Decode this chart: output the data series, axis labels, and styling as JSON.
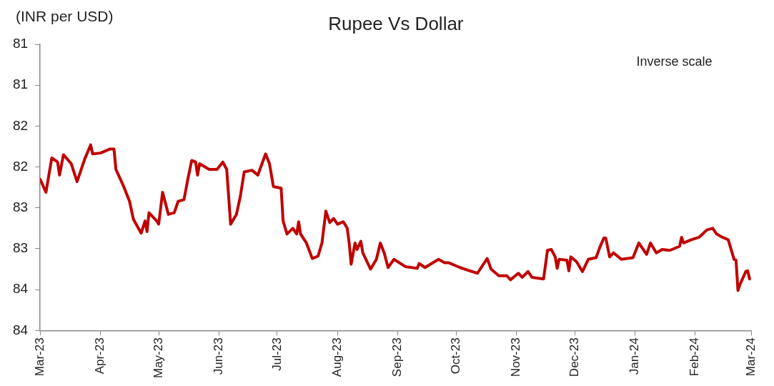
{
  "chart_data": {
    "type": "line",
    "title": "Rupee Vs Dollar",
    "ylabel": "(INR per USD)",
    "annotations": [
      "Inverse scale"
    ],
    "x": [
      "2023-03-01",
      "2023-03-04",
      "2023-03-07",
      "2023-03-10",
      "2023-03-11",
      "2023-03-13",
      "2023-03-17",
      "2023-03-20",
      "2023-03-24",
      "2023-03-27",
      "2023-03-28",
      "2023-04-01",
      "2023-04-06",
      "2023-04-08",
      "2023-04-09",
      "2023-04-13",
      "2023-04-16",
      "2023-04-18",
      "2023-04-22",
      "2023-04-24",
      "2023-04-25",
      "2023-04-26",
      "2023-04-30",
      "2023-05-01",
      "2023-05-03",
      "2023-05-06",
      "2023-05-09",
      "2023-05-11",
      "2023-05-14",
      "2023-05-16",
      "2023-05-18",
      "2023-05-20",
      "2023-05-21",
      "2023-05-22",
      "2023-05-27",
      "2023-05-31",
      "2023-06-03",
      "2023-06-05",
      "2023-06-07",
      "2023-06-10",
      "2023-06-12",
      "2023-06-14",
      "2023-06-18",
      "2023-06-21",
      "2023-06-25",
      "2023-06-27",
      "2023-06-29",
      "2023-07-03",
      "2023-07-04",
      "2023-07-06",
      "2023-07-09",
      "2023-07-11",
      "2023-07-12",
      "2023-07-13",
      "2023-07-16",
      "2023-07-19",
      "2023-07-22",
      "2023-07-24",
      "2023-07-26",
      "2023-07-28",
      "2023-07-30",
      "2023-08-01",
      "2023-08-04",
      "2023-08-06",
      "2023-08-07",
      "2023-08-08",
      "2023-08-10",
      "2023-08-11",
      "2023-08-13",
      "2023-08-14",
      "2023-08-18",
      "2023-08-21",
      "2023-08-23",
      "2023-08-25",
      "2023-08-27",
      "2023-08-30",
      "2023-09-05",
      "2023-09-11",
      "2023-09-12",
      "2023-09-15",
      "2023-09-22",
      "2023-09-25",
      "2023-09-27",
      "2023-10-03",
      "2023-10-08",
      "2023-10-12",
      "2023-10-17",
      "2023-10-19",
      "2023-10-23",
      "2023-10-27",
      "2023-10-29",
      "2023-11-02",
      "2023-11-04",
      "2023-11-07",
      "2023-11-09",
      "2023-11-15",
      "2023-11-17",
      "2023-11-19",
      "2023-11-21",
      "2023-11-22",
      "2023-11-23",
      "2023-11-27",
      "2023-11-28",
      "2023-11-29",
      "2023-12-02",
      "2023-12-05",
      "2023-12-08",
      "2023-12-12",
      "2023-12-14",
      "2023-12-16",
      "2023-12-17",
      "2023-12-19",
      "2023-12-21",
      "2023-12-25",
      "2023-12-31",
      "2024-01-03",
      "2024-01-07",
      "2024-01-09",
      "2024-01-12",
      "2024-01-15",
      "2024-01-19",
      "2024-01-24",
      "2024-01-25",
      "2024-01-26",
      "2024-01-30",
      "2024-02-03",
      "2024-02-07",
      "2024-02-10",
      "2024-02-12",
      "2024-02-15",
      "2024-02-18",
      "2024-02-21",
      "2024-02-22",
      "2024-02-23",
      "2024-02-24",
      "2024-02-27",
      "2024-02-28",
      "2024-02-29"
    ],
    "series": [
      {
        "color": "#c00000",
        "values": [
          82.15,
          82.31,
          81.89,
          81.94,
          82.1,
          81.85,
          81.96,
          82.18,
          81.9,
          81.73,
          81.84,
          81.83,
          81.78,
          81.78,
          82.03,
          82.24,
          82.42,
          82.64,
          82.81,
          82.66,
          82.79,
          82.56,
          82.66,
          82.7,
          82.31,
          82.58,
          82.56,
          82.42,
          82.4,
          82.15,
          81.92,
          81.94,
          82.1,
          81.96,
          82.03,
          82.03,
          81.94,
          82.03,
          82.7,
          82.58,
          82.36,
          82.06,
          82.04,
          82.1,
          81.84,
          81.96,
          82.24,
          82.26,
          82.66,
          82.82,
          82.75,
          82.82,
          82.67,
          82.82,
          82.93,
          83.12,
          83.09,
          82.93,
          82.54,
          82.68,
          82.63,
          82.7,
          82.67,
          82.75,
          82.93,
          83.19,
          82.93,
          83.01,
          82.91,
          83.05,
          83.25,
          83.13,
          82.93,
          83.05,
          83.23,
          83.13,
          83.22,
          83.24,
          83.18,
          83.23,
          83.13,
          83.17,
          83.17,
          83.23,
          83.27,
          83.3,
          83.12,
          83.25,
          83.33,
          83.33,
          83.38,
          83.3,
          83.35,
          83.28,
          83.35,
          83.37,
          83.02,
          83.01,
          83.1,
          83.24,
          83.13,
          83.14,
          83.27,
          83.1,
          83.16,
          83.28,
          83.13,
          83.11,
          82.98,
          82.87,
          82.87,
          83.1,
          83.05,
          83.13,
          83.11,
          82.93,
          83.07,
          82.93,
          83.05,
          83.01,
          83.02,
          82.97,
          82.86,
          82.93,
          82.89,
          82.86,
          82.77,
          82.75,
          82.82,
          82.86,
          82.89,
          83.13,
          83.14,
          83.51,
          83.44,
          83.28,
          83.27,
          83.37
        ]
      }
    ],
    "ylim": [
      84,
      80.5
    ],
    "yticks": [
      {
        "value": 80.5,
        "label": "81"
      },
      81,
      {
        "value": 81.5,
        "label": "82"
      },
      82,
      {
        "value": 82.5,
        "label": "83"
      },
      83,
      {
        "value": 83.5,
        "label": "84"
      },
      84
    ],
    "xlim": [
      "2023-03-01",
      "2024-03-01"
    ],
    "xticks": [
      {
        "value": "2023-03-01",
        "label": "Mar-23"
      },
      {
        "value": "2023-04-01",
        "label": "Apr-23"
      },
      {
        "value": "2023-05-01",
        "label": "May-23"
      },
      {
        "value": "2023-06-01",
        "label": "Jun-23"
      },
      {
        "value": "2023-07-01",
        "label": "Jul-23"
      },
      {
        "value": "2023-08-01",
        "label": "Aug-23"
      },
      {
        "value": "2023-09-01",
        "label": "Sep-23"
      },
      {
        "value": "2023-10-01",
        "label": "Oct-23"
      },
      {
        "value": "2023-11-01",
        "label": "Nov-23"
      },
      {
        "value": "2023-12-01",
        "label": "Dec-23"
      },
      {
        "value": "2024-01-01",
        "label": "Jan-24"
      },
      {
        "value": "2024-02-01",
        "label": "Feb-24"
      },
      {
        "value": "2024-03-01",
        "label": "Mar-24"
      }
    ],
    "grid": false,
    "legend": false,
    "marker": "none",
    "line_style": "solid"
  }
}
